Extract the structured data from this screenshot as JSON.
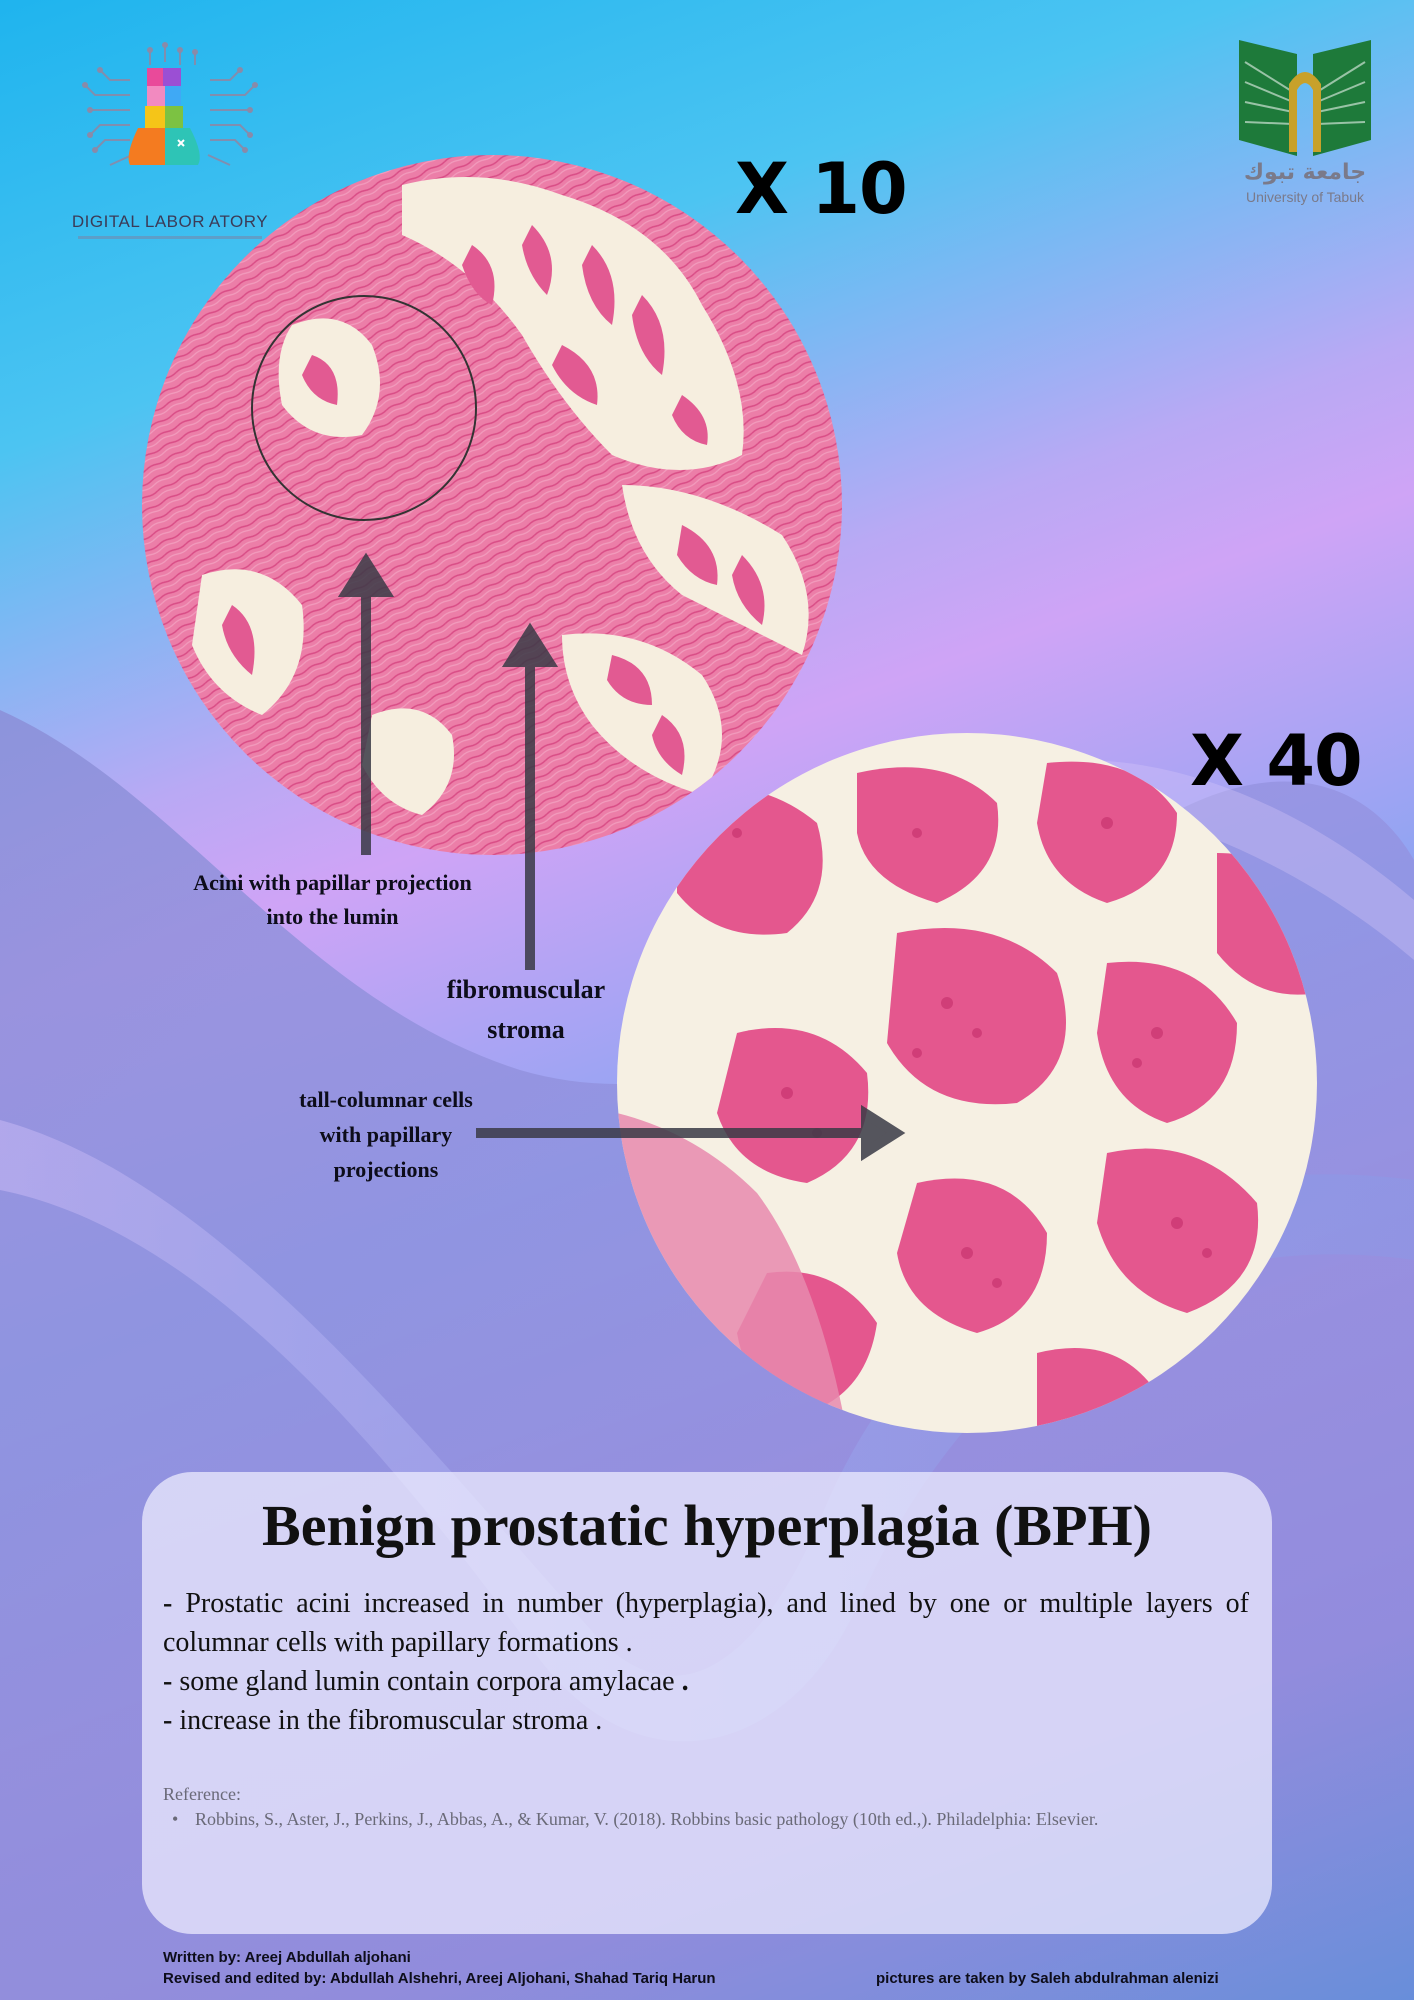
{
  "logos": {
    "left": {
      "name": "DIGITAL LABORATORY",
      "wordmark": "DIGITAL LABOR ATORY"
    },
    "right": {
      "arabic": "جامعة تبوك",
      "english": "University of Tabuk"
    }
  },
  "magnifications": {
    "low": "X 10",
    "high": "X 40"
  },
  "labels": {
    "acini_line1": "Acini with papillar projection",
    "acini_line2": "into the lumin",
    "stroma_line1": "fibromuscular",
    "stroma_line2": "stroma",
    "tall_line1": "tall-columnar cells",
    "tall_line2": "with papillary",
    "tall_line3": "projections"
  },
  "panel": {
    "title": "Benign prostatic hyperplagia (BPH)",
    "bullets": [
      "Prostatic acini increased in number (hyperplagia), and lined by one or multiple layers of columnar cells with papillary formations .",
      "some gland lumin contain corpora amylacae",
      "increase in the fibromuscular stroma ."
    ],
    "reference_label": "Reference:",
    "reference": "Robbins, S., Aster, J., Perkins, J., Abbas, A., & Kumar, V. (2018). Robbins basic pathology (10th ed.,). Philadelphia: Elsevier."
  },
  "credits": {
    "written": "Written by:  Areej Abdullah aljohani",
    "revised": "Revised and edited by: Abdullah Alshehri, Areej Aljohani, Shahad Tariq Harun",
    "pictures": "pictures are taken by  Saleh abdulrahman alenizi"
  },
  "colors": {
    "stain_pink": "#e8588f",
    "background_blue": "#1fb4ee",
    "background_purple": "#9a8fe0",
    "ut_green": "#1e7a3a",
    "ut_gold": "#c8a12a"
  }
}
